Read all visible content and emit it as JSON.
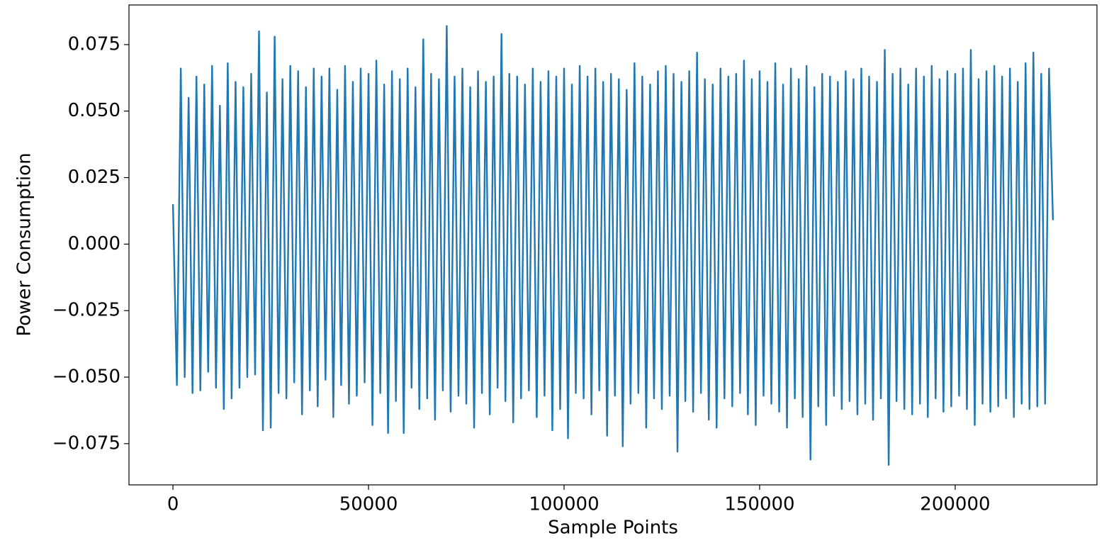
{
  "chart_data": {
    "type": "line",
    "x_label": "Sample Points",
    "y_label": "Power Consumption",
    "color": "#1f77b4",
    "xlim": [
      -11250,
      236250
    ],
    "ylim": [
      -0.0905,
      0.0899
    ],
    "xticks": [
      0,
      50000,
      100000,
      150000,
      200000
    ],
    "yticks": [
      {
        "value": -0.075,
        "label": "−0.075"
      },
      {
        "value": -0.05,
        "label": "−0.050"
      },
      {
        "value": -0.025,
        "label": "−0.025"
      },
      {
        "value": 0,
        "label": "0.000"
      },
      0.025,
      {
        "value": 0.05,
        "label": "0.050"
      },
      0.075
    ],
    "x": [
      0,
      1000,
      2000,
      3000,
      4000,
      5000,
      6000,
      7000,
      8000,
      9000,
      10000,
      11000,
      12000,
      13000,
      14000,
      15000,
      16000,
      17000,
      18000,
      19000,
      20000,
      21000,
      22000,
      23000,
      24000,
      25000,
      26000,
      27000,
      28000,
      29000,
      30000,
      31000,
      32000,
      33000,
      34000,
      35000,
      36000,
      37000,
      38000,
      39000,
      40000,
      41000,
      42000,
      43000,
      44000,
      45000,
      46000,
      47000,
      48000,
      49000,
      50000,
      51000,
      52000,
      53000,
      54000,
      55000,
      56000,
      57000,
      58000,
      59000,
      60000,
      61000,
      62000,
      63000,
      64000,
      65000,
      66000,
      67000,
      68000,
      69000,
      70000,
      71000,
      72000,
      73000,
      74000,
      75000,
      76000,
      77000,
      78000,
      79000,
      80000,
      81000,
      82000,
      83000,
      84000,
      85000,
      86000,
      87000,
      88000,
      89000,
      90000,
      91000,
      92000,
      93000,
      94000,
      95000,
      96000,
      97000,
      98000,
      99000,
      100000,
      101000,
      102000,
      103000,
      104000,
      105000,
      106000,
      107000,
      108000,
      109000,
      110000,
      111000,
      112000,
      113000,
      114000,
      115000,
      116000,
      117000,
      118000,
      119000,
      120000,
      121000,
      122000,
      123000,
      124000,
      125000,
      126000,
      127000,
      128000,
      129000,
      130000,
      131000,
      132000,
      133000,
      134000,
      135000,
      136000,
      137000,
      138000,
      139000,
      140000,
      141000,
      142000,
      143000,
      144000,
      145000,
      146000,
      147000,
      148000,
      149000,
      150000,
      151000,
      152000,
      153000,
      154000,
      155000,
      156000,
      157000,
      158000,
      159000,
      160000,
      161000,
      162000,
      163000,
      164000,
      165000,
      166000,
      167000,
      168000,
      169000,
      170000,
      171000,
      172000,
      173000,
      174000,
      175000,
      176000,
      177000,
      178000,
      179000,
      180000,
      181000,
      182000,
      183000,
      184000,
      185000,
      186000,
      187000,
      188000,
      189000,
      190000,
      191000,
      192000,
      193000,
      194000,
      195000,
      196000,
      197000,
      198000,
      199000,
      200000,
      201000,
      202000,
      203000,
      204000,
      205000,
      206000,
      207000,
      208000,
      209000,
      210000,
      211000,
      212000,
      213000,
      214000,
      215000,
      216000,
      217000,
      218000,
      219000,
      220000,
      221000,
      222000,
      223000,
      224000,
      225000
    ],
    "values": [
      0.015,
      -0.053,
      0.066,
      -0.05,
      0.055,
      -0.056,
      0.063,
      -0.055,
      0.06,
      -0.048,
      0.067,
      -0.054,
      0.052,
      -0.062,
      0.068,
      -0.058,
      0.061,
      -0.054,
      0.059,
      -0.05,
      0.064,
      -0.049,
      0.08,
      -0.07,
      0.057,
      -0.069,
      0.078,
      -0.056,
      0.062,
      -0.058,
      0.067,
      -0.052,
      0.065,
      -0.064,
      0.059,
      -0.055,
      0.066,
      -0.061,
      0.063,
      -0.051,
      0.066,
      -0.065,
      0.058,
      -0.053,
      0.067,
      -0.06,
      0.061,
      -0.057,
      0.066,
      -0.052,
      0.064,
      -0.068,
      0.069,
      -0.056,
      0.06,
      -0.071,
      0.065,
      -0.059,
      0.062,
      -0.071,
      0.066,
      -0.054,
      0.059,
      -0.062,
      0.077,
      -0.058,
      0.064,
      -0.066,
      0.062,
      -0.055,
      0.082,
      -0.063,
      0.063,
      -0.057,
      0.066,
      -0.06,
      0.059,
      -0.069,
      0.065,
      -0.056,
      0.061,
      -0.064,
      0.063,
      -0.054,
      0.079,
      -0.059,
      0.064,
      -0.067,
      0.063,
      -0.058,
      0.06,
      -0.055,
      0.066,
      -0.065,
      0.061,
      -0.057,
      0.065,
      -0.07,
      0.063,
      -0.062,
      0.066,
      -0.073,
      0.06,
      -0.056,
      0.067,
      -0.058,
      0.063,
      -0.064,
      0.066,
      -0.055,
      0.061,
      -0.072,
      0.064,
      -0.057,
      0.062,
      -0.076,
      0.058,
      -0.06,
      0.068,
      -0.056,
      0.063,
      -0.069,
      0.06,
      -0.058,
      0.065,
      -0.062,
      0.067,
      -0.057,
      0.064,
      -0.078,
      0.061,
      -0.059,
      0.065,
      -0.063,
      0.072,
      -0.056,
      0.062,
      -0.066,
      0.06,
      -0.069,
      0.066,
      -0.058,
      0.063,
      -0.061,
      0.064,
      -0.056,
      0.069,
      -0.064,
      0.062,
      -0.068,
      0.065,
      -0.057,
      0.061,
      -0.06,
      0.068,
      -0.063,
      0.06,
      -0.069,
      0.066,
      -0.058,
      0.062,
      -0.065,
      0.067,
      -0.081,
      0.059,
      -0.061,
      0.064,
      -0.068,
      0.063,
      -0.057,
      0.061,
      -0.062,
      0.065,
      -0.059,
      0.062,
      -0.064,
      0.066,
      -0.06,
      0.063,
      -0.066,
      0.061,
      -0.058,
      0.073,
      -0.083,
      0.064,
      -0.059,
      0.066,
      -0.062,
      0.06,
      -0.064,
      0.066,
      -0.06,
      0.063,
      -0.065,
      0.067,
      -0.058,
      0.062,
      -0.063,
      0.065,
      -0.061,
      0.064,
      -0.057,
      0.066,
      -0.062,
      0.073,
      -0.068,
      0.062,
      -0.06,
      0.065,
      -0.063,
      0.067,
      -0.061,
      0.063,
      -0.058,
      0.066,
      -0.065,
      0.061,
      -0.06,
      0.068,
      -0.062,
      0.072,
      -0.061,
      0.064,
      -0.06,
      0.066,
      0.009
    ]
  }
}
